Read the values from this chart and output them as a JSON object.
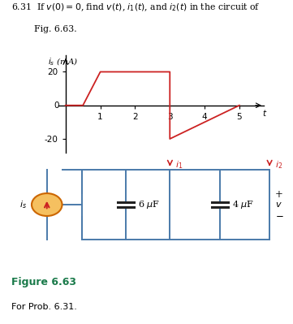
{
  "title_line1": "6.31  If $v(0) = 0$, find $v(t)$, $i_1(t)$, and $i_2(t)$ in the circuit of",
  "title_line2": "        Fig. 6.63.",
  "graph_ylabel": "$i_s$ (mA)",
  "graph_xlabel": "$t$",
  "waveform_x": [
    0,
    0.5,
    1,
    3,
    3,
    5
  ],
  "waveform_y": [
    0,
    0,
    20,
    20,
    -20,
    0
  ],
  "waveform_color": "#cc2222",
  "circuit_color": "#4a7aaa",
  "fig_label": "Figure 6.63",
  "fig_sublabel": "For Prob. 6.31.",
  "fig_label_color": "#1a7a4a",
  "cap1_label": "6 $\\mu$F",
  "cap2_label": "4 $\\mu$F",
  "source_label": "$i_s$",
  "i1_label": "$i_1$",
  "i2_label": "$i_2$",
  "v_label": "$v$",
  "arrow_color": "#cc2222"
}
